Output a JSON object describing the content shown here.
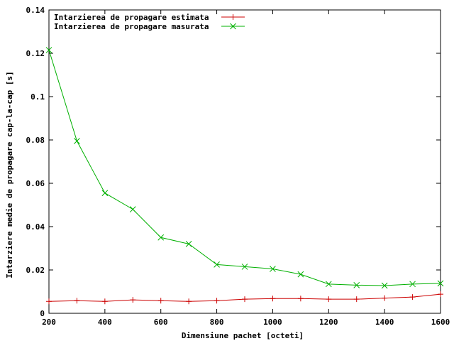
{
  "chart_data": {
    "type": "line",
    "title": "",
    "xlabel": "Dimensiune pachet [octeti]",
    "ylabel": "Intarziere medie de propagare cap-la-cap [s]",
    "xlim": [
      200,
      1600
    ],
    "ylim": [
      0,
      0.14
    ],
    "xticks": [
      "200",
      "400",
      "600",
      "800",
      "1000",
      "1200",
      "1400",
      "1600"
    ],
    "yticks": [
      "0",
      "0.02",
      "0.04",
      "0.06",
      "0.08",
      "0.1",
      "0.12",
      "0.14"
    ],
    "xtick_values": [
      200,
      400,
      600,
      800,
      1000,
      1200,
      1400,
      1600
    ],
    "ytick_values": [
      0,
      0.02,
      0.04,
      0.06,
      0.08,
      0.1,
      0.12,
      0.14
    ],
    "grid": false,
    "legend_position": "top-left",
    "x": [
      200,
      300,
      400,
      500,
      600,
      700,
      800,
      900,
      1000,
      1100,
      1200,
      1300,
      1400,
      1500,
      1600
    ],
    "series": [
      {
        "name": "Intarzierea de propagare estimata",
        "color": "#cc0000",
        "marker": "plus",
        "values": [
          0.0055,
          0.0058,
          0.0055,
          0.0062,
          0.0058,
          0.0055,
          0.0058,
          0.0065,
          0.0068,
          0.0068,
          0.0065,
          0.0065,
          0.007,
          0.0075,
          0.0088
        ]
      },
      {
        "name": "Intarzierea de propagare masurata",
        "color": "#00b000",
        "marker": "x",
        "values": [
          0.1215,
          0.0795,
          0.0555,
          0.048,
          0.035,
          0.032,
          0.0225,
          0.0215,
          0.0205,
          0.018,
          0.0135,
          0.013,
          0.0128,
          0.0135,
          0.0138
        ]
      }
    ]
  }
}
